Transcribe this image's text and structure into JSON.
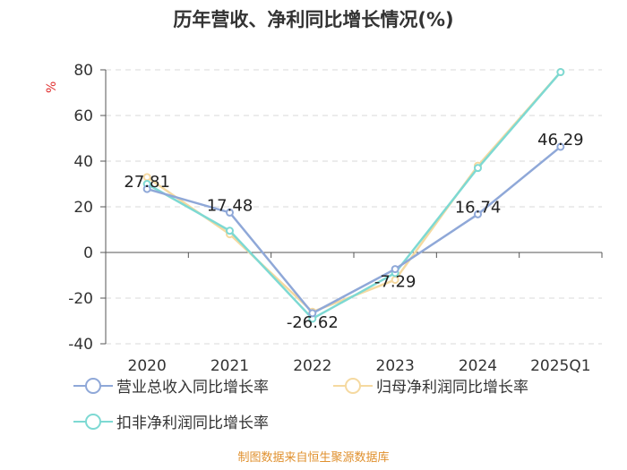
{
  "title": "历年营收、净利同比增长情况(%)",
  "source": "制图数据来自恒生聚源数据库",
  "chart_data": {
    "type": "line",
    "title": "历年营收、净利同比增长情况(%)",
    "ylabel": "%",
    "xlabel": "",
    "categories": [
      "2020",
      "2021",
      "2022",
      "2023",
      "2024",
      "2025Q1"
    ],
    "ylim": [
      -40,
      80
    ],
    "yticks": [
      80,
      60,
      40,
      20,
      0,
      -20,
      -40
    ],
    "grid": "horizontal-dashed",
    "legend_position": "bottom",
    "series": [
      {
        "name": "营业总收入同比增长率",
        "color": "#8fa8d8",
        "values": [
          27.81,
          17.48,
          -26.62,
          -7.29,
          16.74,
          46.29
        ],
        "labels": [
          "27.81",
          "17.48",
          "-26.62",
          "-7.29",
          "16.74",
          "46.29"
        ]
      },
      {
        "name": "归母净利润同比增长率",
        "color": "#f5d9a0",
        "values": [
          33,
          8,
          -26,
          -12,
          38,
          79
        ]
      },
      {
        "name": "扣非净利润同比增长率",
        "color": "#7dd9d3",
        "values": [
          30,
          9.5,
          -29,
          -9,
          37,
          79
        ]
      }
    ]
  }
}
